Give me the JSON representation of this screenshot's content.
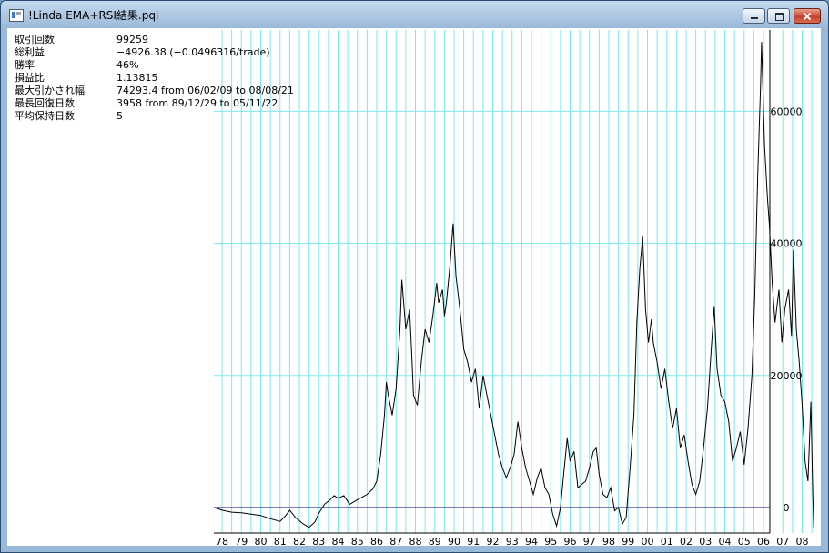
{
  "window": {
    "title": "!Linda EMA+RSI結果.pqi",
    "icon": "app-window-icon"
  },
  "stats": [
    {
      "label": "取引回数",
      "value": "99259"
    },
    {
      "label": "総利益",
      "value": "−4926.38 (−0.0496316/trade)"
    },
    {
      "label": "勝率",
      "value": "46%"
    },
    {
      "label": "損益比",
      "value": "1.13815"
    },
    {
      "label": "最大引かされ幅",
      "value": "74293.4 from 06/02/09 to 08/08/21"
    },
    {
      "label": "最長回復日数",
      "value": "3958 from 89/12/29 to 05/11/22"
    },
    {
      "label": "平均保持日数",
      "value": "5"
    }
  ],
  "chart_data": {
    "type": "line",
    "x_tick_labels": [
      "78",
      "79",
      "80",
      "81",
      "82",
      "83",
      "84",
      "85",
      "86",
      "87",
      "88",
      "89",
      "90",
      "91",
      "92",
      "93",
      "94",
      "95",
      "96",
      "97",
      "98",
      "99",
      "00",
      "01",
      "02",
      "03",
      "04",
      "05",
      "06",
      "07",
      "08"
    ],
    "y_tick_labels": [
      "0",
      "20000",
      "40000",
      "60000"
    ],
    "y_ticks": [
      0,
      20000,
      40000,
      60000
    ],
    "ylim": [
      -3500,
      72500
    ],
    "xlim": [
      1977.6,
      2008.6
    ],
    "grid": true,
    "colors": {
      "grid": "#7fe8ee",
      "line": "#000000",
      "zero_line": "#000080"
    },
    "series": [
      {
        "points": [
          [
            1977.6,
            0
          ],
          [
            1978.0,
            -400
          ],
          [
            1978.5,
            -700
          ],
          [
            1979.0,
            -800
          ],
          [
            1979.5,
            -1000
          ],
          [
            1980.0,
            -1200
          ],
          [
            1980.5,
            -1700
          ],
          [
            1981.0,
            -2100
          ],
          [
            1981.3,
            -1200
          ],
          [
            1981.5,
            -400
          ],
          [
            1981.8,
            -1500
          ],
          [
            1982.2,
            -2500
          ],
          [
            1982.5,
            -3000
          ],
          [
            1982.8,
            -2200
          ],
          [
            1983.0,
            -900
          ],
          [
            1983.3,
            500
          ],
          [
            1983.6,
            1200
          ],
          [
            1983.8,
            1800
          ],
          [
            1984.0,
            1400
          ],
          [
            1984.3,
            1800
          ],
          [
            1984.6,
            500
          ],
          [
            1984.9,
            1000
          ],
          [
            1985.2,
            1500
          ],
          [
            1985.5,
            2000
          ],
          [
            1985.8,
            2800
          ],
          [
            1986.0,
            4000
          ],
          [
            1986.2,
            8000
          ],
          [
            1986.4,
            14000
          ],
          [
            1986.5,
            19000
          ],
          [
            1986.6,
            17000
          ],
          [
            1986.8,
            14000
          ],
          [
            1987.0,
            18000
          ],
          [
            1987.2,
            27000
          ],
          [
            1987.3,
            34500
          ],
          [
            1987.5,
            27000
          ],
          [
            1987.7,
            30000
          ],
          [
            1987.8,
            24000
          ],
          [
            1987.9,
            17000
          ],
          [
            1988.1,
            15500
          ],
          [
            1988.3,
            22000
          ],
          [
            1988.5,
            27000
          ],
          [
            1988.7,
            25000
          ],
          [
            1988.9,
            29000
          ],
          [
            1989.1,
            34000
          ],
          [
            1989.2,
            31000
          ],
          [
            1989.4,
            33000
          ],
          [
            1989.5,
            29000
          ],
          [
            1989.6,
            31000
          ],
          [
            1989.8,
            37000
          ],
          [
            1989.95,
            43000
          ],
          [
            1990.1,
            35000
          ],
          [
            1990.3,
            30000
          ],
          [
            1990.5,
            24000
          ],
          [
            1990.7,
            22000
          ],
          [
            1990.9,
            19000
          ],
          [
            1991.1,
            21000
          ],
          [
            1991.3,
            15000
          ],
          [
            1991.5,
            20000
          ],
          [
            1991.7,
            17000
          ],
          [
            1991.9,
            14000
          ],
          [
            1992.1,
            11000
          ],
          [
            1992.3,
            8000
          ],
          [
            1992.5,
            6000
          ],
          [
            1992.7,
            4500
          ],
          [
            1992.9,
            6000
          ],
          [
            1993.1,
            8000
          ],
          [
            1993.3,
            13000
          ],
          [
            1993.5,
            9000
          ],
          [
            1993.7,
            6000
          ],
          [
            1993.9,
            4000
          ],
          [
            1994.1,
            2000
          ],
          [
            1994.3,
            4500
          ],
          [
            1994.5,
            6000
          ],
          [
            1994.7,
            3000
          ],
          [
            1994.9,
            2000
          ],
          [
            1995.1,
            -1000
          ],
          [
            1995.3,
            -2800
          ],
          [
            1995.5,
            0
          ],
          [
            1995.7,
            6000
          ],
          [
            1995.85,
            10500
          ],
          [
            1996.0,
            7000
          ],
          [
            1996.2,
            8500
          ],
          [
            1996.4,
            3000
          ],
          [
            1996.6,
            3500
          ],
          [
            1996.8,
            4000
          ],
          [
            1997.0,
            6000
          ],
          [
            1997.2,
            8500
          ],
          [
            1997.35,
            9000
          ],
          [
            1997.5,
            5000
          ],
          [
            1997.7,
            2000
          ],
          [
            1997.9,
            1500
          ],
          [
            1998.1,
            3000
          ],
          [
            1998.3,
            -500
          ],
          [
            1998.5,
            0
          ],
          [
            1998.7,
            -2500
          ],
          [
            1998.9,
            -1500
          ],
          [
            1999.1,
            6000
          ],
          [
            1999.3,
            14000
          ],
          [
            1999.45,
            28000
          ],
          [
            1999.6,
            36000
          ],
          [
            1999.75,
            41000
          ],
          [
            1999.9,
            30000
          ],
          [
            2000.05,
            25000
          ],
          [
            2000.2,
            28500
          ],
          [
            2000.3,
            25000
          ],
          [
            2000.5,
            22000
          ],
          [
            2000.7,
            18000
          ],
          [
            2000.9,
            21000
          ],
          [
            2001.1,
            16000
          ],
          [
            2001.3,
            12000
          ],
          [
            2001.5,
            15000
          ],
          [
            2001.7,
            9000
          ],
          [
            2001.9,
            11000
          ],
          [
            2002.1,
            7000
          ],
          [
            2002.3,
            3500
          ],
          [
            2002.5,
            2000
          ],
          [
            2002.7,
            4000
          ],
          [
            2002.9,
            9000
          ],
          [
            2003.1,
            15000
          ],
          [
            2003.3,
            24000
          ],
          [
            2003.45,
            30500
          ],
          [
            2003.6,
            21000
          ],
          [
            2003.8,
            17000
          ],
          [
            2004.0,
            16000
          ],
          [
            2004.2,
            13000
          ],
          [
            2004.4,
            7000
          ],
          [
            2004.6,
            9000
          ],
          [
            2004.8,
            11500
          ],
          [
            2005.0,
            6500
          ],
          [
            2005.2,
            12000
          ],
          [
            2005.4,
            20000
          ],
          [
            2005.55,
            32000
          ],
          [
            2005.7,
            50000
          ],
          [
            2005.85,
            64000
          ],
          [
            2005.9,
            70500
          ],
          [
            2006.05,
            55000
          ],
          [
            2006.2,
            47000
          ],
          [
            2006.3,
            43000
          ],
          [
            2006.45,
            34000
          ],
          [
            2006.6,
            28000
          ],
          [
            2006.8,
            33000
          ],
          [
            2006.95,
            25000
          ],
          [
            2007.1,
            30000
          ],
          [
            2007.3,
            33000
          ],
          [
            2007.45,
            26000
          ],
          [
            2007.55,
            39000
          ],
          [
            2007.7,
            27000
          ],
          [
            2007.85,
            22000
          ],
          [
            2008.0,
            15500
          ],
          [
            2008.15,
            7000
          ],
          [
            2008.3,
            4000
          ],
          [
            2008.45,
            16000
          ],
          [
            2008.55,
            2000
          ],
          [
            2008.6,
            -3000
          ]
        ]
      }
    ]
  }
}
